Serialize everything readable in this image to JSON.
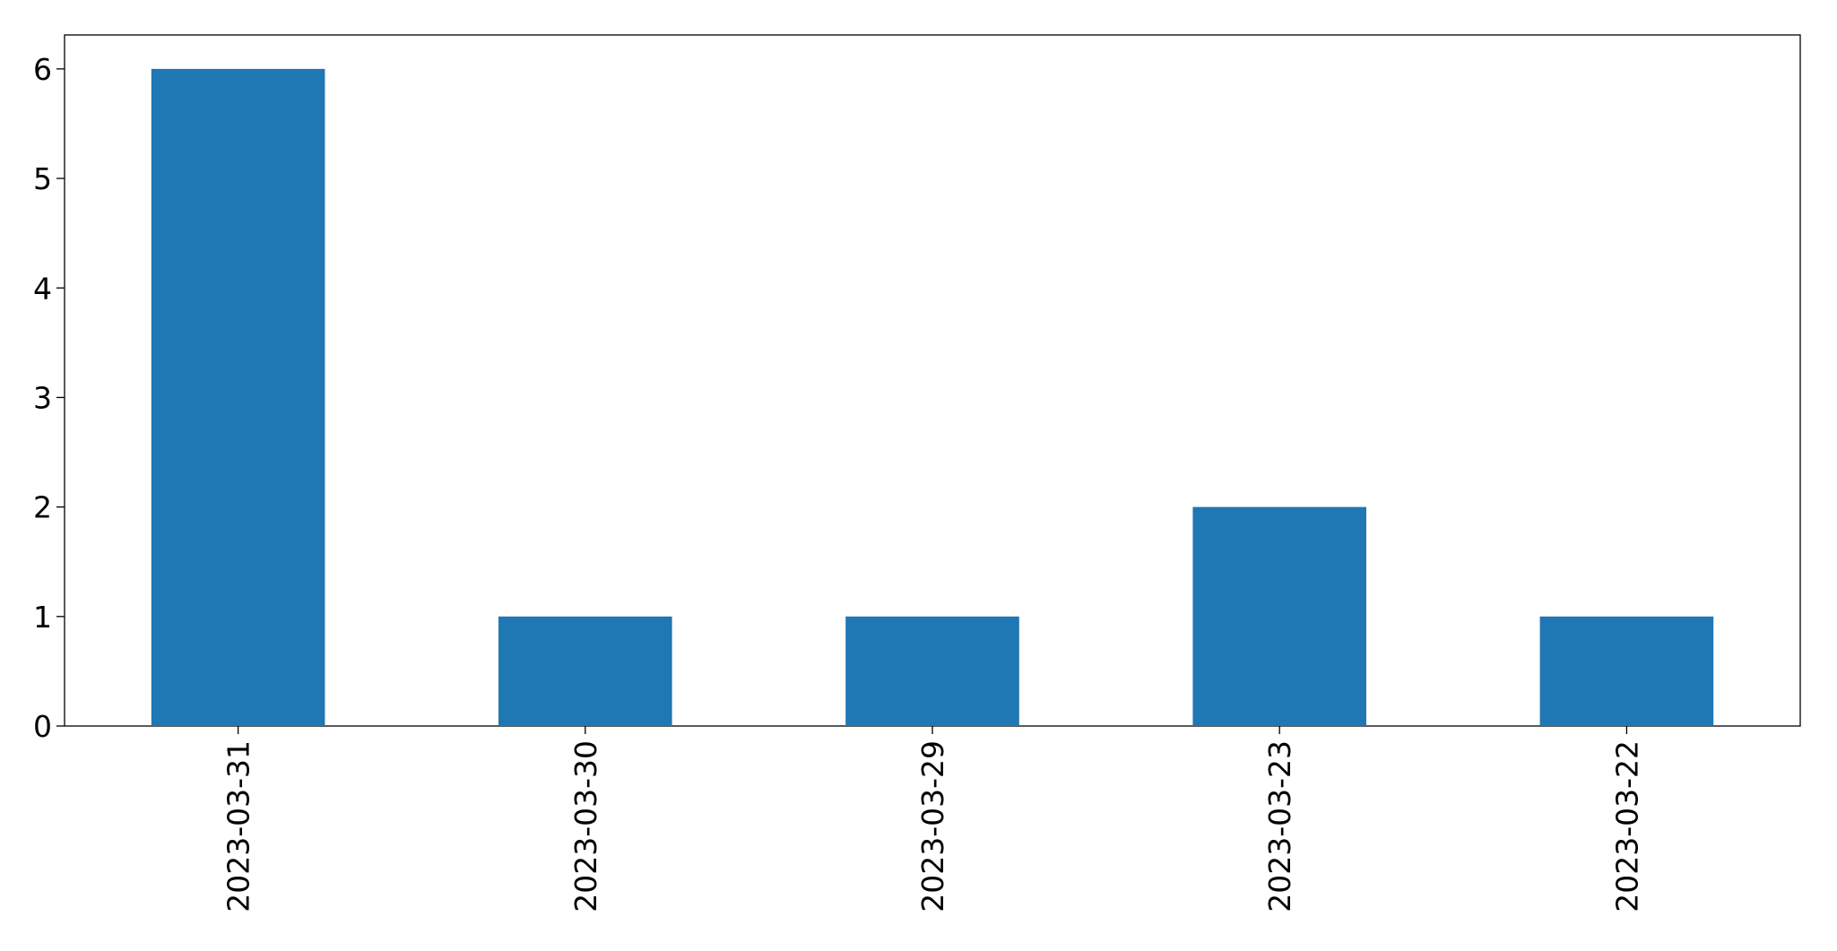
{
  "chart_data": {
    "type": "bar",
    "categories": [
      "2023-03-31",
      "2023-03-30",
      "2023-03-29",
      "2023-03-23",
      "2023-03-22"
    ],
    "values": [
      6,
      1,
      1,
      2,
      1
    ],
    "color": "#1f77b4",
    "ylim": [
      0,
      6.31
    ],
    "yticks": [
      0,
      1,
      2,
      3,
      4,
      5,
      6
    ],
    "grid": false
  }
}
